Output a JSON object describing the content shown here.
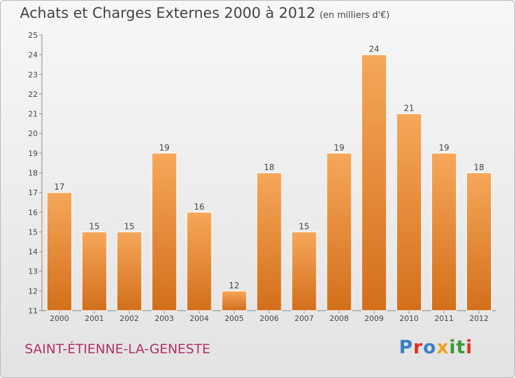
{
  "header": {
    "title": "Achats et Charges Externes 2000 à 2012",
    "subtitle": "(en milliers d'€)"
  },
  "footer": {
    "city": "SAINT-ÉTIENNE-LA-GENESTE",
    "logo": {
      "letters": [
        "P",
        "r",
        "o",
        "x",
        "i",
        "t",
        "i"
      ],
      "colors": [
        "#3a7fc6",
        "#e0331f",
        "#3a7fc6",
        "#f0a21f",
        "#3a9a3a",
        "#3a9a3a",
        "#e0331f"
      ]
    }
  },
  "chart_data": {
    "type": "bar",
    "categories": [
      "2000",
      "2001",
      "2002",
      "2003",
      "2004",
      "2005",
      "2006",
      "2007",
      "2008",
      "2009",
      "2010",
      "2011",
      "2012"
    ],
    "values": [
      17,
      15,
      15,
      19,
      16,
      12,
      18,
      15,
      19,
      24,
      21,
      19,
      18
    ],
    "ylim": [
      11,
      25
    ],
    "yticks": [
      11,
      12,
      13,
      14,
      15,
      16,
      17,
      18,
      19,
      20,
      21,
      22,
      23,
      24,
      25
    ],
    "grid": false,
    "bar_color_top": "#f6a75a",
    "bar_color_bottom": "#d36f1b"
  }
}
